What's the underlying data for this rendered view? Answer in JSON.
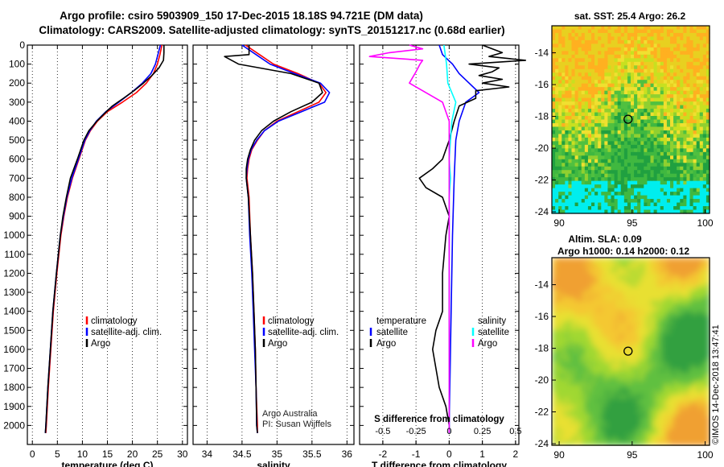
{
  "title_line1": "Argo profile: csiro 5903909_150 17-Dec-2015 18.18S 94.721E (DM data)",
  "title_line2": "Climatology: CARS2009. Satellite-adjusted climatology: synTS_20151217.nc (0.68d earlier)",
  "credit": "©IMOS 14-Dec-2018 13:47:41",
  "colors": {
    "climatology": "#ff0000",
    "satellite": "#0000ff",
    "argo": "#000000",
    "sal_satellite": "#00ffff",
    "sal_argo": "#ff00ff"
  },
  "chart_data": [
    {
      "type": "line",
      "id": "temperature",
      "xlabel": "temperature (deg C)",
      "ylim": [
        2100,
        0
      ],
      "xlim": [
        -1,
        31
      ],
      "xticks": [
        0,
        5,
        10,
        15,
        20,
        25,
        30
      ],
      "yticks": [
        0,
        100,
        200,
        300,
        400,
        500,
        600,
        700,
        800,
        900,
        1000,
        1100,
        1200,
        1300,
        1400,
        1500,
        1600,
        1700,
        1800,
        1900,
        2000
      ],
      "grid": "dotted vertical",
      "legend": {
        "position": "lower-right",
        "entries": [
          "climatology",
          "satellite-adj. clim.",
          "Argo"
        ]
      },
      "series": [
        {
          "name": "climatology",
          "color": "#ff0000",
          "depth": [
            0,
            50,
            100,
            150,
            200,
            250,
            300,
            350,
            400,
            450,
            500,
            600,
            700,
            800,
            900,
            1000,
            1200,
            1400,
            1600,
            1800,
            2000,
            2040
          ],
          "values": [
            25.9,
            25.5,
            25.0,
            24.2,
            22.8,
            20.8,
            18.0,
            15.0,
            13.0,
            11.6,
            10.6,
            9.3,
            8.0,
            7.0,
            6.3,
            5.7,
            4.9,
            4.2,
            3.7,
            3.2,
            2.8,
            2.7
          ]
        },
        {
          "name": "satellite-adj. clim.",
          "color": "#0000ff",
          "depth": [
            0,
            50,
            100,
            150,
            200,
            250,
            300,
            350,
            400,
            450,
            500,
            600,
            700,
            800,
            900,
            1000,
            1200,
            1400,
            1600,
            1800,
            2000,
            2040
          ],
          "values": [
            25.6,
            25.1,
            24.6,
            23.7,
            22.0,
            19.8,
            17.3,
            14.7,
            12.8,
            11.5,
            10.5,
            9.2,
            7.9,
            6.9,
            6.2,
            5.6,
            4.8,
            4.1,
            3.6,
            3.1,
            2.7,
            2.6
          ]
        },
        {
          "name": "Argo",
          "color": "#000000",
          "depth": [
            0,
            40,
            80,
            120,
            160,
            200,
            240,
            280,
            320,
            360,
            400,
            450,
            500,
            600,
            700,
            800,
            900,
            1000,
            1200,
            1400,
            1600,
            1800,
            2000,
            2040
          ],
          "values": [
            26.3,
            26.3,
            26.2,
            25.3,
            23.9,
            22.2,
            20.3,
            18.2,
            16.0,
            14.4,
            12.9,
            11.3,
            10.3,
            9.0,
            7.6,
            6.8,
            6.1,
            5.6,
            4.8,
            4.1,
            3.6,
            3.1,
            2.7,
            2.6
          ]
        }
      ]
    },
    {
      "type": "line",
      "id": "salinity",
      "xlabel": "salinity",
      "ylim": [
        2100,
        0
      ],
      "xlim": [
        33.8,
        36.1
      ],
      "xticks": [
        34,
        34.5,
        35,
        35.5,
        36
      ],
      "grid": "dotted vertical",
      "legend": {
        "position": "lower-right",
        "entries": [
          "climatology",
          "satellite-adj. clim.",
          "Argo"
        ]
      },
      "annotation": [
        "Argo Australia",
        "PI: Susan Wijffels"
      ],
      "series": [
        {
          "name": "climatology",
          "color": "#ff0000",
          "depth": [
            0,
            50,
            100,
            150,
            200,
            250,
            300,
            350,
            400,
            450,
            500,
            550,
            600,
            650,
            700,
            800,
            1000,
            1200,
            1400,
            1600,
            1800,
            2000,
            2040
          ],
          "values": [
            34.55,
            34.75,
            34.95,
            35.3,
            35.6,
            35.7,
            35.6,
            35.3,
            35.0,
            34.82,
            34.72,
            34.64,
            34.6,
            34.58,
            34.57,
            34.6,
            34.62,
            34.65,
            34.67,
            34.69,
            34.7,
            34.72,
            34.72
          ]
        },
        {
          "name": "satellite-adj. clim.",
          "color": "#0000ff",
          "depth": [
            0,
            50,
            100,
            150,
            200,
            250,
            300,
            350,
            400,
            450,
            500,
            550,
            600,
            650,
            700,
            800,
            1000,
            1200,
            1400,
            1600,
            1800,
            2000,
            2040
          ],
          "values": [
            34.5,
            34.7,
            34.9,
            35.25,
            35.62,
            35.75,
            35.68,
            35.35,
            35.02,
            34.82,
            34.71,
            34.63,
            34.59,
            34.57,
            34.56,
            34.59,
            34.61,
            34.64,
            34.66,
            34.68,
            34.7,
            34.71,
            34.72
          ]
        },
        {
          "name": "Argo",
          "color": "#000000",
          "depth": [
            0,
            50,
            60,
            100,
            150,
            200,
            250,
            300,
            350,
            400,
            450,
            500,
            550,
            600,
            650,
            700,
            800,
            1000,
            1200,
            1400,
            1600,
            1800,
            2000,
            2040
          ],
          "values": [
            34.6,
            34.6,
            34.25,
            34.45,
            35.2,
            35.6,
            35.65,
            35.5,
            35.2,
            34.95,
            34.78,
            34.68,
            34.62,
            34.58,
            34.56,
            34.56,
            34.59,
            34.62,
            34.65,
            34.67,
            34.69,
            34.7,
            34.71,
            34.72
          ]
        }
      ]
    },
    {
      "type": "line",
      "id": "differences",
      "xlabel": "T difference from climatology",
      "secondary_xlabel": "S difference from climatology",
      "ylim": [
        2100,
        0
      ],
      "xlim": [
        -2.7,
        2.1
      ],
      "xticks": [
        -2,
        -1,
        0,
        1,
        2
      ],
      "s_xticks": [
        -0.5,
        -0.25,
        0,
        0.25,
        0.5
      ],
      "grid": "dotted vertical",
      "legend": {
        "position": "lower",
        "headers": [
          "temperature",
          "salinity"
        ],
        "temperature_entries": [
          "satellite",
          "Argo"
        ],
        "salinity_entries": [
          "satellite",
          "Argo"
        ]
      },
      "series": [
        {
          "name": "temperature satellite",
          "color": "#0000ff",
          "depth": [
            0,
            50,
            100,
            150,
            200,
            250,
            300,
            400,
            500,
            700,
            1000,
            1500,
            2000,
            2040
          ],
          "values": [
            -0.3,
            -0.2,
            0.1,
            0.3,
            0.6,
            0.9,
            0.5,
            0.3,
            0.2,
            0.15,
            0.1,
            0.05,
            0.0,
            0.0
          ]
        },
        {
          "name": "temperature Argo",
          "color": "#000000",
          "depth": [
            0,
            40,
            60,
            80,
            100,
            120,
            140,
            160,
            180,
            200,
            220,
            240,
            280,
            320,
            400,
            500,
            600,
            650,
            700,
            750,
            800,
            900,
            1000,
            1200,
            1400,
            1500,
            1600,
            1800,
            1900,
            2000,
            2040
          ],
          "values": [
            1.0,
            1.6,
            1.2,
            2.3,
            0.6,
            1.5,
            1.3,
            0.9,
            1.6,
            1.0,
            1.8,
            0.8,
            0.8,
            0.3,
            0.15,
            0.0,
            -0.2,
            -0.5,
            -0.9,
            -0.7,
            -0.2,
            0.0,
            -0.1,
            -0.2,
            -0.2,
            -0.4,
            -0.5,
            -0.3,
            -0.1,
            0.0,
            0.0
          ]
        },
        {
          "name": "salinity satellite",
          "color": "#00ffff",
          "depth": [
            0,
            100,
            200,
            300,
            400,
            500,
            600,
            700,
            800,
            1000,
            1200,
            1400,
            1600,
            1800,
            2000,
            2040
          ],
          "values": [
            -0.04,
            -0.02,
            -0.01,
            0.05,
            0.02,
            0.01,
            0.0,
            0.01,
            0.0,
            0.0,
            0.0,
            0.0,
            0.0,
            0.0,
            0.0,
            0.0
          ]
        },
        {
          "name": "salinity Argo",
          "color": "#ff00ff",
          "depth": [
            0,
            20,
            40,
            60,
            80,
            100,
            140,
            200,
            300,
            400,
            500,
            700,
            1000,
            1500,
            2000,
            2040
          ],
          "values": [
            -0.3,
            -0.2,
            -0.45,
            -0.6,
            -0.2,
            -0.22,
            -0.25,
            -0.3,
            -0.05,
            0.0,
            0.0,
            0.0,
            0.0,
            0.0,
            0.0,
            0.0
          ]
        }
      ]
    },
    {
      "type": "heatmap",
      "id": "sst-map",
      "title": "sat. SST: 25.4  Argo: 26.2",
      "xlim": [
        89.5,
        100.3
      ],
      "ylim": [
        -24.1,
        -12.3
      ],
      "xticks": [
        90,
        95,
        100
      ],
      "yticks": [
        -14,
        -16,
        -18,
        -20,
        -22,
        -24
      ],
      "marker": {
        "lon": 94.721,
        "lat": -18.18
      }
    },
    {
      "type": "heatmap",
      "id": "sla-map",
      "title": "Altim. SLA: 0.09",
      "subtitle": "Argo h1000: 0.14  h2000: 0.12",
      "xlim": [
        89.5,
        100.3
      ],
      "ylim": [
        -24.1,
        -12.3
      ],
      "xticks": [
        90,
        95,
        100
      ],
      "yticks": [
        -14,
        -16,
        -18,
        -20,
        -22,
        -24
      ],
      "marker": {
        "lon": 94.721,
        "lat": -18.18
      }
    }
  ]
}
